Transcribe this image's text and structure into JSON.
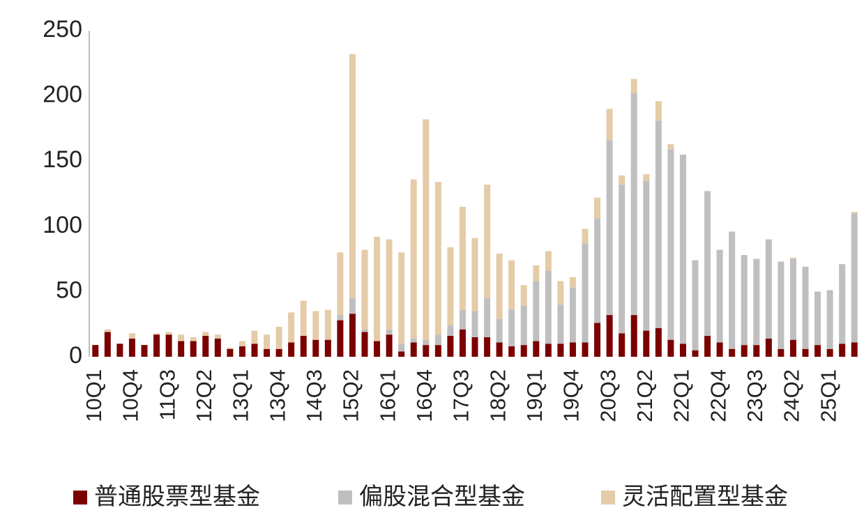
{
  "chart_data": {
    "type": "stacked_bar",
    "categories": [
      "10Q1",
      null,
      null,
      "10Q4",
      null,
      null,
      "11Q3",
      null,
      null,
      "12Q2",
      null,
      null,
      "13Q1",
      null,
      null,
      "13Q4",
      null,
      null,
      "14Q3",
      null,
      null,
      "15Q2",
      null,
      null,
      "16Q1",
      null,
      null,
      "16Q4",
      null,
      null,
      "17Q3",
      null,
      null,
      "18Q2",
      null,
      null,
      "19Q1",
      null,
      null,
      "19Q4",
      null,
      null,
      "20Q3",
      null,
      null,
      "21Q2",
      null,
      null,
      "22Q1",
      null,
      null,
      "22Q4",
      null,
      null,
      "23Q3",
      null,
      null,
      "24Q2",
      null,
      null,
      "25Q1",
      null,
      null
    ],
    "series": [
      {
        "name": "普通股票型基金",
        "color": "#7b0000",
        "values": [
          9,
          19,
          10,
          14,
          9,
          17,
          17,
          12,
          12,
          16,
          14,
          6,
          8,
          10,
          6,
          6,
          11,
          16,
          13,
          13,
          28,
          33,
          19,
          12,
          17,
          4,
          11,
          9,
          9,
          16,
          21,
          15,
          15,
          11,
          8,
          9,
          12,
          10,
          10,
          11,
          11,
          26,
          32,
          18,
          32,
          20,
          22,
          13,
          10,
          5,
          16,
          11,
          6,
          9,
          9,
          14,
          6,
          13,
          6,
          9,
          6,
          10,
          11
        ]
      },
      {
        "name": "偏股混合型基金",
        "color": "#bfbfbf",
        "values": [
          0,
          0,
          0,
          0,
          0,
          0,
          0,
          0,
          0,
          0,
          0,
          0,
          0,
          0,
          0,
          0,
          0,
          0,
          0,
          0,
          4,
          12,
          2,
          0,
          4,
          6,
          3,
          4,
          8,
          8,
          15,
          20,
          30,
          18,
          28,
          30,
          46,
          56,
          30,
          42,
          76,
          80,
          134,
          114,
          170,
          115,
          159,
          146,
          145,
          69,
          111,
          71,
          90,
          69,
          66,
          76,
          67,
          62,
          63,
          41,
          45,
          61,
          99
        ]
      },
      {
        "name": "灵活配置型基金",
        "color": "#e6cba8",
        "values": [
          0,
          2,
          0,
          4,
          0,
          1,
          2,
          5,
          3,
          3,
          3,
          1,
          4,
          10,
          11,
          17,
          23,
          27,
          22,
          23,
          48,
          187,
          61,
          80,
          69,
          70,
          122,
          169,
          117,
          60,
          79,
          56,
          87,
          50,
          38,
          16,
          12,
          15,
          18,
          8,
          11,
          16,
          24,
          7,
          11,
          5,
          15,
          4,
          0,
          0,
          0,
          0,
          0,
          0,
          0,
          0,
          0,
          1,
          0,
          0,
          0,
          0,
          1
        ]
      }
    ],
    "ylim": [
      0,
      250
    ],
    "yticks": [
      0,
      50,
      100,
      150,
      200,
      250
    ],
    "grid": false
  }
}
